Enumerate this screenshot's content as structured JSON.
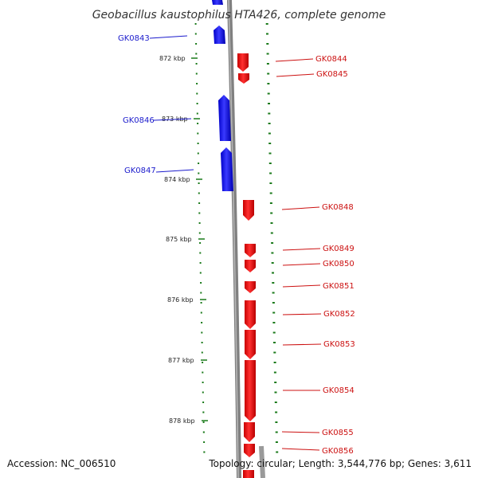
{
  "title": "Geobacillus kaustophilus HTA426, complete genome",
  "footer": {
    "accession": "Accession: NC_006510",
    "topology": "Topology: circular; Length: 3,544,776 bp; Genes: 3,611"
  },
  "ticks": [
    "872 kbp",
    "873 kbp",
    "874 kbp",
    "875 kbp",
    "876 kbp",
    "877 kbp",
    "878 kbp"
  ],
  "colors": {
    "minus_strand": "#0000ff",
    "plus_strand": "#ff0000",
    "gc_dots": "#1a7a1a",
    "backbone": "#808080"
  },
  "genes": [
    {
      "name": "GK0843",
      "strand": "minus"
    },
    {
      "name": "GK0844",
      "strand": "plus"
    },
    {
      "name": "GK0845",
      "strand": "plus"
    },
    {
      "name": "GK0846",
      "strand": "minus"
    },
    {
      "name": "GK0847",
      "strand": "minus"
    },
    {
      "name": "GK0848",
      "strand": "plus"
    },
    {
      "name": "GK0849",
      "strand": "plus"
    },
    {
      "name": "GK0850",
      "strand": "plus"
    },
    {
      "name": "GK0851",
      "strand": "plus"
    },
    {
      "name": "GK0852",
      "strand": "plus"
    },
    {
      "name": "GK0853",
      "strand": "plus"
    },
    {
      "name": "GK0854",
      "strand": "plus"
    },
    {
      "name": "GK0855",
      "strand": "plus"
    },
    {
      "name": "GK0856",
      "strand": "plus"
    }
  ]
}
